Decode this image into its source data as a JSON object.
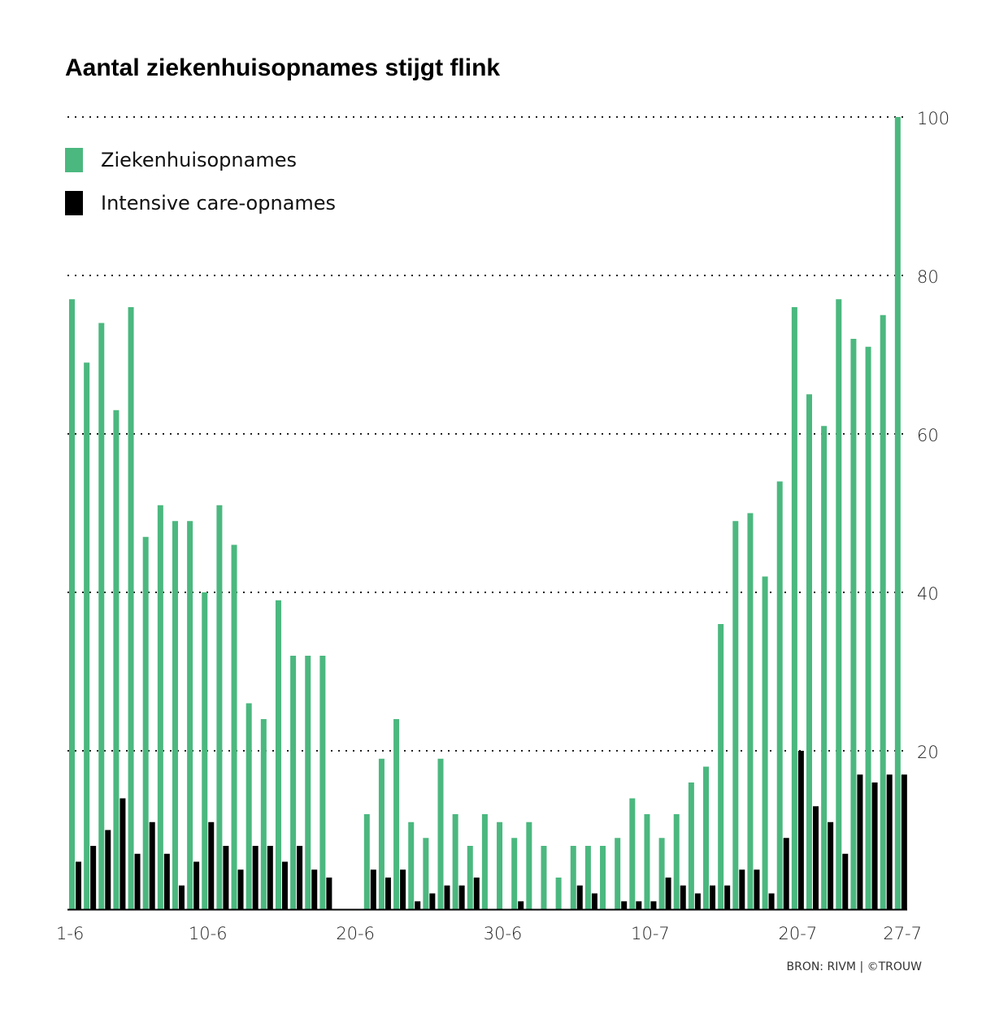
{
  "chart_data": {
    "type": "bar",
    "title": "Aantal ziekenhuisopnames stijgt flink",
    "source": "BRON: RIVM | ©TROUW",
    "ylim": [
      0,
      100
    ],
    "yticks": [
      20,
      40,
      60,
      80,
      100
    ],
    "grid": true,
    "legend_placement": "top-left",
    "xtick_labels": [
      "1-6",
      "10-6",
      "20-6",
      "30-6",
      "10-7",
      "20-7",
      "27-7"
    ],
    "categories": [
      "1-6",
      "2-6",
      "3-6",
      "4-6",
      "5-6",
      "6-6",
      "7-6",
      "8-6",
      "9-6",
      "10-6",
      "11-6",
      "12-6",
      "13-6",
      "14-6",
      "15-6",
      "16-6",
      "17-6",
      "18-6",
      "19-6",
      "20-6",
      "21-6",
      "22-6",
      "23-6",
      "24-6",
      "25-6",
      "26-6",
      "27-6",
      "28-6",
      "29-6",
      "30-6",
      "1-7",
      "2-7",
      "3-7",
      "4-7",
      "5-7",
      "6-7",
      "7-7",
      "8-7",
      "9-7",
      "10-7",
      "11-7",
      "12-7",
      "13-7",
      "14-7",
      "15-7",
      "16-7",
      "17-7",
      "18-7",
      "19-7",
      "20-7",
      "21-7",
      "22-7",
      "23-7",
      "24-7",
      "25-7",
      "26-7",
      "27-7"
    ],
    "series": [
      {
        "name": "Ziekenhuisopnames",
        "color": "#4bb87f",
        "values": [
          77,
          69,
          74,
          63,
          76,
          47,
          51,
          49,
          49,
          40,
          51,
          46,
          26,
          24,
          39,
          32,
          32,
          32,
          0,
          0,
          12,
          19,
          24,
          11,
          9,
          19,
          12,
          8,
          12,
          11,
          9,
          11,
          8,
          4,
          8,
          8,
          8,
          9,
          14,
          12,
          9,
          12,
          16,
          18,
          36,
          49,
          50,
          42,
          54,
          76,
          65,
          61,
          77,
          72,
          71,
          75,
          100
        ]
      },
      {
        "name": "Intensive care-opnames",
        "color": "#000000",
        "values": [
          6,
          8,
          10,
          14,
          7,
          11,
          7,
          3,
          6,
          11,
          8,
          5,
          8,
          8,
          6,
          8,
          5,
          4,
          0,
          0,
          5,
          4,
          5,
          1,
          2,
          3,
          3,
          4,
          0,
          0,
          1,
          0,
          0,
          0,
          3,
          2,
          0,
          1,
          1,
          1,
          4,
          3,
          2,
          3,
          3,
          5,
          5,
          2,
          9,
          20,
          13,
          11,
          7,
          17,
          16,
          17,
          17
        ]
      }
    ]
  }
}
